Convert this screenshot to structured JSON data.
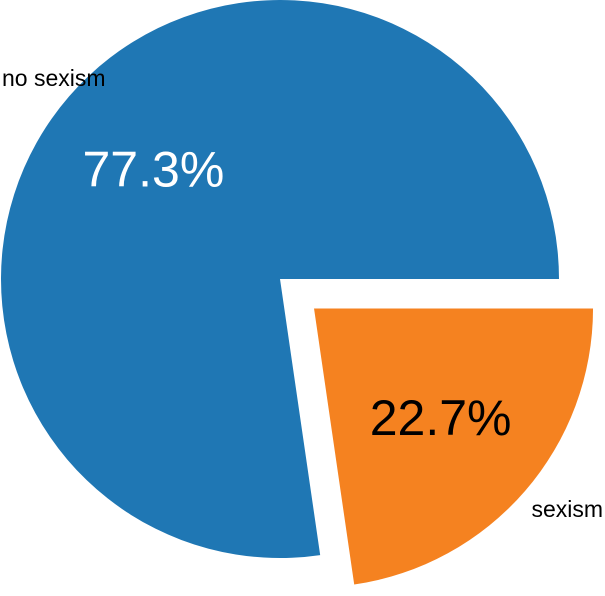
{
  "chart_data": {
    "type": "pie",
    "slices": [
      {
        "label": "no sexism",
        "value": 77.3,
        "value_label": "77.3%",
        "color": "#1f77b4",
        "label_color": "#ffffff",
        "exploded": false
      },
      {
        "label": "sexism",
        "value": 22.7,
        "value_label": "22.7%",
        "color": "#f58220",
        "label_color": "#000000",
        "exploded": true
      }
    ],
    "start_angle_deg": 0,
    "direction": "counterclockwise",
    "legend": "none"
  }
}
